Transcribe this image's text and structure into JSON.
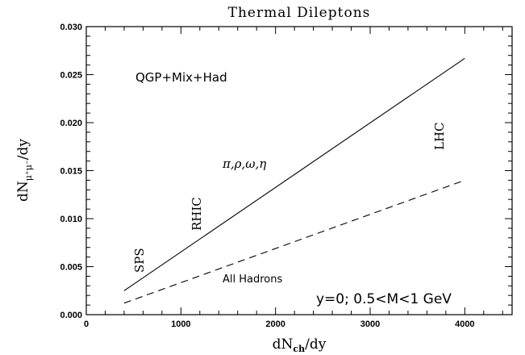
{
  "chart_data": {
    "type": "line",
    "title": "Thermal Dileptons",
    "xlabel": "dN_ch/dy",
    "ylabel": "dN_{μ⁺μ⁻}/dy",
    "xlim": [
      0,
      4500
    ],
    "ylim": [
      0,
      0.03
    ],
    "x_ticks": [
      "0",
      "1000",
      "2000",
      "3000",
      "4000"
    ],
    "y_ticks": [
      "0.000",
      "0.005",
      "0.010",
      "0.015",
      "0.020",
      "0.025",
      "0.030"
    ],
    "grid": false,
    "series": [
      {
        "style": "solid",
        "x": [
          400,
          4000
        ],
        "y": [
          0.0025,
          0.0267
        ]
      },
      {
        "style": "dashed",
        "x": [
          400,
          4000
        ],
        "y": [
          0.0012,
          0.014
        ]
      }
    ],
    "annotations": {
      "model": "QGP+Mix+Had",
      "mesons": "π,ρ,ω,η",
      "sps": "SPS",
      "rhic": "RHIC",
      "lhc": "LHC",
      "all_hadrons": "All Hadrons",
      "conditions": "y=0;  0.5<M<1  GeV"
    }
  }
}
